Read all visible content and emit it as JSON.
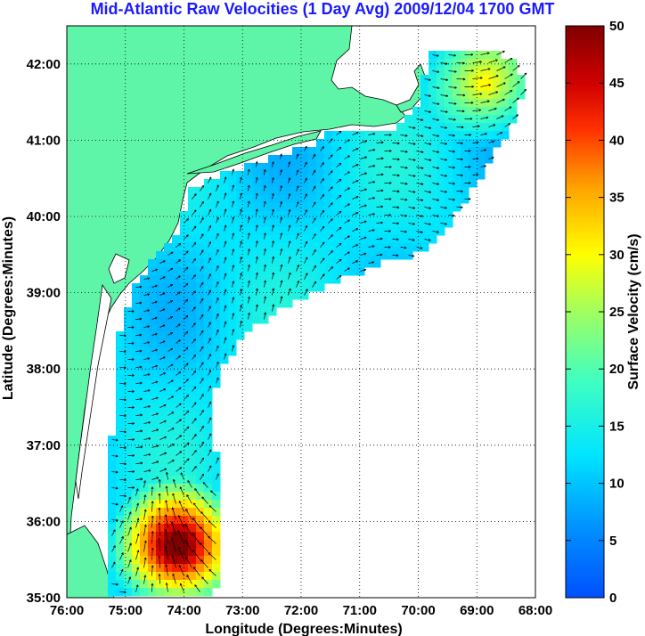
{
  "title": "Mid-Atlantic Raw Velocities (1 Day Avg) 2009/12/04 1700 GMT",
  "map": {
    "xlabel": "Longitude (Degrees:Minutes)",
    "ylabel": "Latitude (Degrees:Minutes)",
    "lon_range": [
      -76,
      -68
    ],
    "lat_range": [
      35,
      42.5
    ],
    "lon_ticks": [
      "76:00",
      "75:00",
      "74:00",
      "73:00",
      "72:00",
      "71:00",
      "70:00",
      "69:00",
      "68:00"
    ],
    "lat_ticks": [
      "35:00",
      "36:00",
      "37:00",
      "38:00",
      "39:00",
      "40:00",
      "41:00",
      "42:00"
    ],
    "grid": "dotted",
    "land_color": "#5ff5a8"
  },
  "colorbar": {
    "label": "Surface Velocity (cm/s)",
    "min": 0,
    "max": 50,
    "ticks": [
      "0",
      "5",
      "10",
      "15",
      "20",
      "25",
      "30",
      "35",
      "40",
      "45",
      "50"
    ],
    "colormap": "jet"
  }
}
